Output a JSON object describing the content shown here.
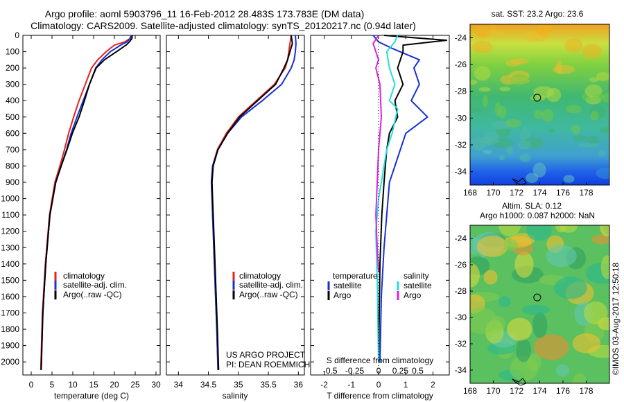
{
  "header": {
    "line1": "Argo profile: aoml 5903796_11 16-Feb-2012 28.483S 173.783E (DM data)",
    "line2": "Climatology: CARS2009. Satellite-adjusted climatology: synTS_20120217.nc (0.94d later)"
  },
  "colors": {
    "climatology": "#e8201a",
    "satellite": "#1530d8",
    "argo": "#000000",
    "sat_salinity": "#22dede",
    "argo_salinity": "#e020e0"
  },
  "chart_data": [
    {
      "type": "line",
      "id": "temperature",
      "xlabel": "temperature (deg C)",
      "ylabel": "",
      "xlim": [
        -2,
        31
      ],
      "ylim": [
        2080,
        0
      ],
      "xticks": [
        "0",
        "5",
        "10",
        "15",
        "20",
        "25",
        "30"
      ],
      "yticks": [
        "0",
        "100",
        "200",
        "300",
        "400",
        "500",
        "600",
        "700",
        "800",
        "900",
        "1000",
        "1100",
        "1200",
        "1300",
        "1400",
        "1500",
        "1600",
        "1700",
        "1800",
        "1900",
        "2000"
      ],
      "legend": [
        "climatology",
        "satellite-adj. clim.",
        "Argo(..raw -QC)"
      ],
      "series": [
        {
          "name": "climatology",
          "x": [
            24.0,
            23.7,
            22.5,
            20.0,
            18.0,
            16.0,
            14.5,
            13.0,
            11.5,
            10.2,
            9.0,
            8.0,
            6.9,
            5.7,
            4.4,
            3.4,
            2.7,
            2.3
          ],
          "y": [
            0,
            20,
            40,
            60,
            100,
            150,
            200,
            300,
            400,
            500,
            600,
            700,
            800,
            900,
            1100,
            1400,
            1700,
            2050
          ]
        },
        {
          "name": "satellite-adj. clim.",
          "x": [
            24.0,
            23.8,
            23.0,
            21.5,
            19.0,
            17.0,
            15.5,
            14.0,
            12.5,
            11.0,
            9.6,
            8.5,
            7.2,
            5.9,
            4.5,
            3.5,
            2.8,
            2.4
          ],
          "y": [
            0,
            20,
            40,
            60,
            100,
            150,
            200,
            300,
            400,
            500,
            600,
            700,
            800,
            900,
            1100,
            1400,
            1700,
            2050
          ]
        },
        {
          "name": "Argo(..raw -QC)",
          "x": [
            24.3,
            24.2,
            23.6,
            22.8,
            20.5,
            17.6,
            15.6,
            14.0,
            12.8,
            11.5,
            9.9,
            8.6,
            7.2,
            5.9,
            4.5,
            3.5,
            2.8,
            2.4
          ],
          "y": [
            0,
            20,
            40,
            60,
            100,
            150,
            200,
            300,
            400,
            500,
            600,
            700,
            800,
            900,
            1100,
            1400,
            1700,
            2050
          ]
        }
      ]
    },
    {
      "type": "line",
      "id": "salinity",
      "xlabel": "salinity",
      "xlim": [
        33.8,
        36.1
      ],
      "ylim": [
        2080,
        0
      ],
      "xticks": [
        "34",
        "34.5",
        "35",
        "35.5",
        "36"
      ],
      "legend": [
        "climatology",
        "satellite-adj. clim.",
        "Argo(..raw -QC)"
      ],
      "annotation": [
        "US ARGO PROJECT",
        "PI: DEAN ROEMMICH"
      ],
      "series": [
        {
          "name": "climatology",
          "x": [
            35.88,
            35.86,
            35.84,
            35.82,
            35.78,
            35.6,
            35.3,
            35.0,
            34.8,
            34.65,
            34.57,
            34.55,
            34.56,
            34.58,
            34.6,
            34.62,
            34.64,
            34.66
          ],
          "y": [
            0,
            50,
            100,
            150,
            200,
            300,
            400,
            500,
            600,
            700,
            800,
            900,
            1000,
            1200,
            1400,
            1600,
            1800,
            2050
          ]
        },
        {
          "name": "satellite-adj. clim.",
          "x": [
            35.95,
            35.96,
            35.95,
            35.93,
            35.88,
            35.72,
            35.4,
            35.05,
            34.82,
            34.66,
            34.57,
            34.55,
            34.56,
            34.58,
            34.6,
            34.62,
            34.64,
            34.66
          ],
          "y": [
            0,
            50,
            100,
            150,
            200,
            300,
            400,
            500,
            600,
            700,
            800,
            900,
            1000,
            1200,
            1400,
            1600,
            1800,
            2050
          ]
        },
        {
          "name": "Argo(..raw -QC)",
          "x": [
            35.88,
            35.9,
            35.86,
            35.82,
            35.76,
            35.62,
            35.32,
            35.02,
            34.82,
            34.66,
            34.58,
            34.56,
            34.57,
            34.59,
            34.61,
            34.63,
            34.65,
            34.67
          ],
          "y": [
            0,
            50,
            100,
            150,
            200,
            300,
            400,
            500,
            600,
            700,
            800,
            900,
            1000,
            1200,
            1400,
            1600,
            1800,
            2050
          ]
        }
      ]
    },
    {
      "type": "line",
      "id": "differences",
      "xlabel": "T difference from climatology",
      "xlabel_secondary": "S difference from climatology",
      "xlim": [
        -2.5,
        2.6
      ],
      "ylim": [
        2080,
        0
      ],
      "xticks": [
        "-2",
        "-1",
        "0",
        "1",
        "2"
      ],
      "xticks_secondary": [
        "-0.5",
        "-0.25",
        "0",
        "0.25",
        "0.5"
      ],
      "legend_titles": [
        "temperature",
        "salinity"
      ],
      "legend": [
        "satellite",
        "Argo",
        "satellite",
        "Argo"
      ],
      "series": [
        {
          "name": "temperature satellite",
          "x": [
            -0.2,
            0.0,
            0.5,
            1.5,
            1.3,
            1.5,
            1.2,
            1.8,
            1.0,
            0.8,
            0.6,
            0.4,
            0.3,
            0.2,
            0.1,
            0.05
          ],
          "y": [
            0,
            40,
            80,
            150,
            200,
            300,
            400,
            500,
            600,
            700,
            800,
            900,
            1100,
            1300,
            1600,
            2000
          ]
        },
        {
          "name": "temperature Argo",
          "x": [
            0.2,
            2.5,
            0.9,
            0.9,
            0.7,
            0.9,
            0.6,
            0.7,
            0.4,
            0.3,
            0.25,
            0.2,
            0.12,
            0.05,
            0.0
          ],
          "y": [
            0,
            30,
            60,
            100,
            200,
            300,
            400,
            500,
            600,
            700,
            800,
            900,
            1100,
            1400,
            2000
          ]
        },
        {
          "name": "salinity satellite",
          "x": [
            0.7,
            0.6,
            0.3,
            0.4,
            0.6,
            0.4,
            0.7,
            0.5,
            0.3,
            0.2,
            0.1,
            0.0,
            -0.1,
            -0.05,
            0.0
          ],
          "y": [
            0,
            40,
            100,
            200,
            300,
            400,
            450,
            600,
            700,
            800,
            900,
            1000,
            1200,
            1500,
            2000
          ]
        },
        {
          "name": "salinity Argo",
          "x": [
            0.0,
            -0.2,
            -0.1,
            0.0,
            -0.1,
            0.05,
            0.1,
            0.0,
            -0.05,
            -0.1,
            -0.05,
            0.0
          ],
          "y": [
            0,
            50,
            100,
            150,
            200,
            300,
            500,
            700,
            900,
            1100,
            1300,
            1450
          ]
        }
      ]
    },
    {
      "type": "heatmap",
      "id": "sst-map",
      "title": "sat. SST: 23.2  Argo: 23.6",
      "xlim": [
        168,
        180
      ],
      "ylim": [
        -35,
        -23
      ],
      "xticks": [
        "168",
        "170",
        "172",
        "174",
        "176",
        "178"
      ],
      "yticks": [
        "-24",
        "-26",
        "-28",
        "-30",
        "-32",
        "-34"
      ],
      "marker": {
        "x": 173.78,
        "y": -28.48
      }
    },
    {
      "type": "heatmap",
      "id": "sla-map",
      "title": "Altim. SLA: 0.12",
      "subtitle": "Argo h1000: 0.087 h2000: NaN",
      "xlim": [
        168,
        180
      ],
      "ylim": [
        -35,
        -23
      ],
      "xticks": [
        "168",
        "170",
        "172",
        "174",
        "176",
        "178"
      ],
      "yticks": [
        "-24",
        "-26",
        "-28",
        "-30",
        "-32",
        "-34"
      ],
      "marker": {
        "x": 173.78,
        "y": -28.48
      }
    }
  ],
  "footer": {
    "credit": "©IMOS 03-Aug-2017 12:50:18"
  }
}
